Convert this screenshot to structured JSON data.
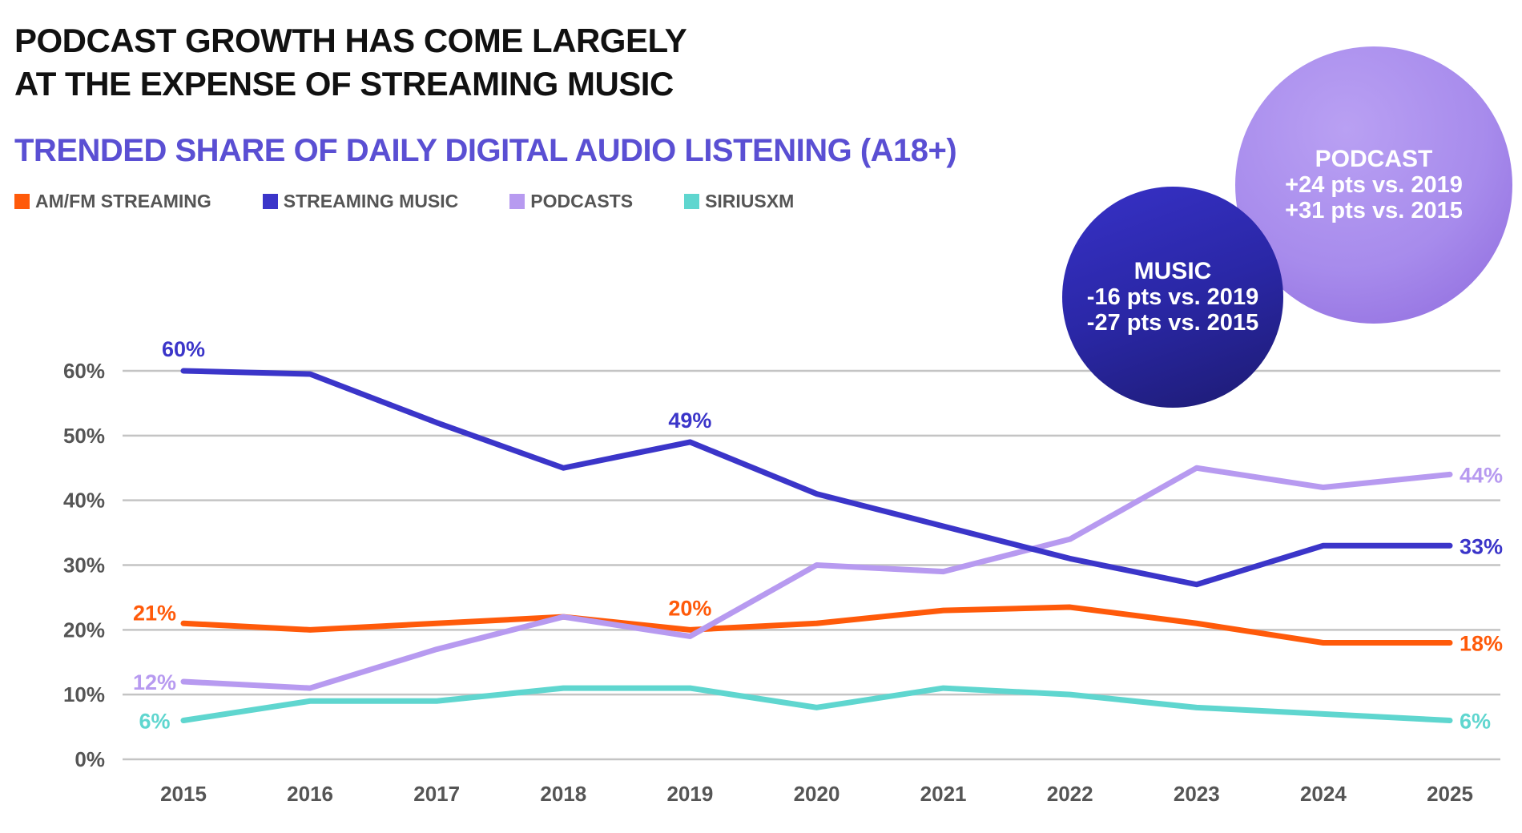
{
  "title_lines": [
    "PODCAST GROWTH HAS COME LARGELY",
    "AT THE EXPENSE OF STREAMING MUSIC"
  ],
  "chart_data": {
    "type": "line",
    "title": "TRENDED SHARE OF DAILY DIGITAL AUDIO LISTENING (A18+)",
    "x": [
      "2015",
      "2016",
      "2017",
      "2018",
      "2019",
      "2020",
      "2021",
      "2022",
      "2023",
      "2024",
      "2025"
    ],
    "ylim": [
      0,
      60
    ],
    "yticks": [
      0,
      10,
      20,
      30,
      40,
      50,
      60
    ],
    "ytick_labels": [
      "0%",
      "10%",
      "20%",
      "30%",
      "40%",
      "50%",
      "60%"
    ],
    "grid": true,
    "legend_position": "top-left",
    "series": [
      {
        "name": "AM/FM STREAMING",
        "color": "#ff5a0a",
        "values": [
          21,
          20,
          21,
          22,
          20,
          21,
          23,
          23.5,
          21,
          18,
          18
        ]
      },
      {
        "name": "STREAMING MUSIC",
        "color": "#3b35c9",
        "values": [
          60,
          59.5,
          52,
          45,
          49,
          41,
          36,
          31,
          27,
          33,
          33
        ]
      },
      {
        "name": "PODCASTS",
        "color": "#b79af0",
        "values": [
          12,
          11,
          17,
          22,
          19,
          30,
          29,
          34,
          45,
          42,
          44
        ]
      },
      {
        "name": "SIRIUSXM",
        "color": "#5fd6cf",
        "values": [
          6,
          9,
          9,
          11,
          11,
          8,
          11,
          10,
          8,
          7,
          6
        ]
      }
    ],
    "data_labels": [
      {
        "series": 1,
        "x": "2015",
        "text": "60%",
        "pos": "above"
      },
      {
        "series": 1,
        "x": "2019",
        "text": "49%",
        "pos": "above"
      },
      {
        "series": 0,
        "x": "2015",
        "text": "21%",
        "pos": "left-above"
      },
      {
        "series": 0,
        "x": "2019",
        "text": "20%",
        "pos": "above"
      },
      {
        "series": 2,
        "x": "2015",
        "text": "12%",
        "pos": "left"
      },
      {
        "series": 3,
        "x": "2015",
        "text": "6%",
        "pos": "left"
      },
      {
        "series": 2,
        "x": "2025",
        "text": "44%",
        "pos": "right"
      },
      {
        "series": 1,
        "x": "2025",
        "text": "33%",
        "pos": "right"
      },
      {
        "series": 0,
        "x": "2025",
        "text": "18%",
        "pos": "right"
      },
      {
        "series": 3,
        "x": "2025",
        "text": "6%",
        "pos": "right"
      }
    ],
    "annotations": {
      "podcast": {
        "head": "PODCAST",
        "lines": [
          "+24 pts vs. 2019",
          "+31 pts vs. 2015"
        ]
      },
      "music": {
        "head": "MUSIC",
        "lines": [
          "-16 pts vs. 2019",
          "-27 pts vs. 2015"
        ]
      }
    }
  }
}
